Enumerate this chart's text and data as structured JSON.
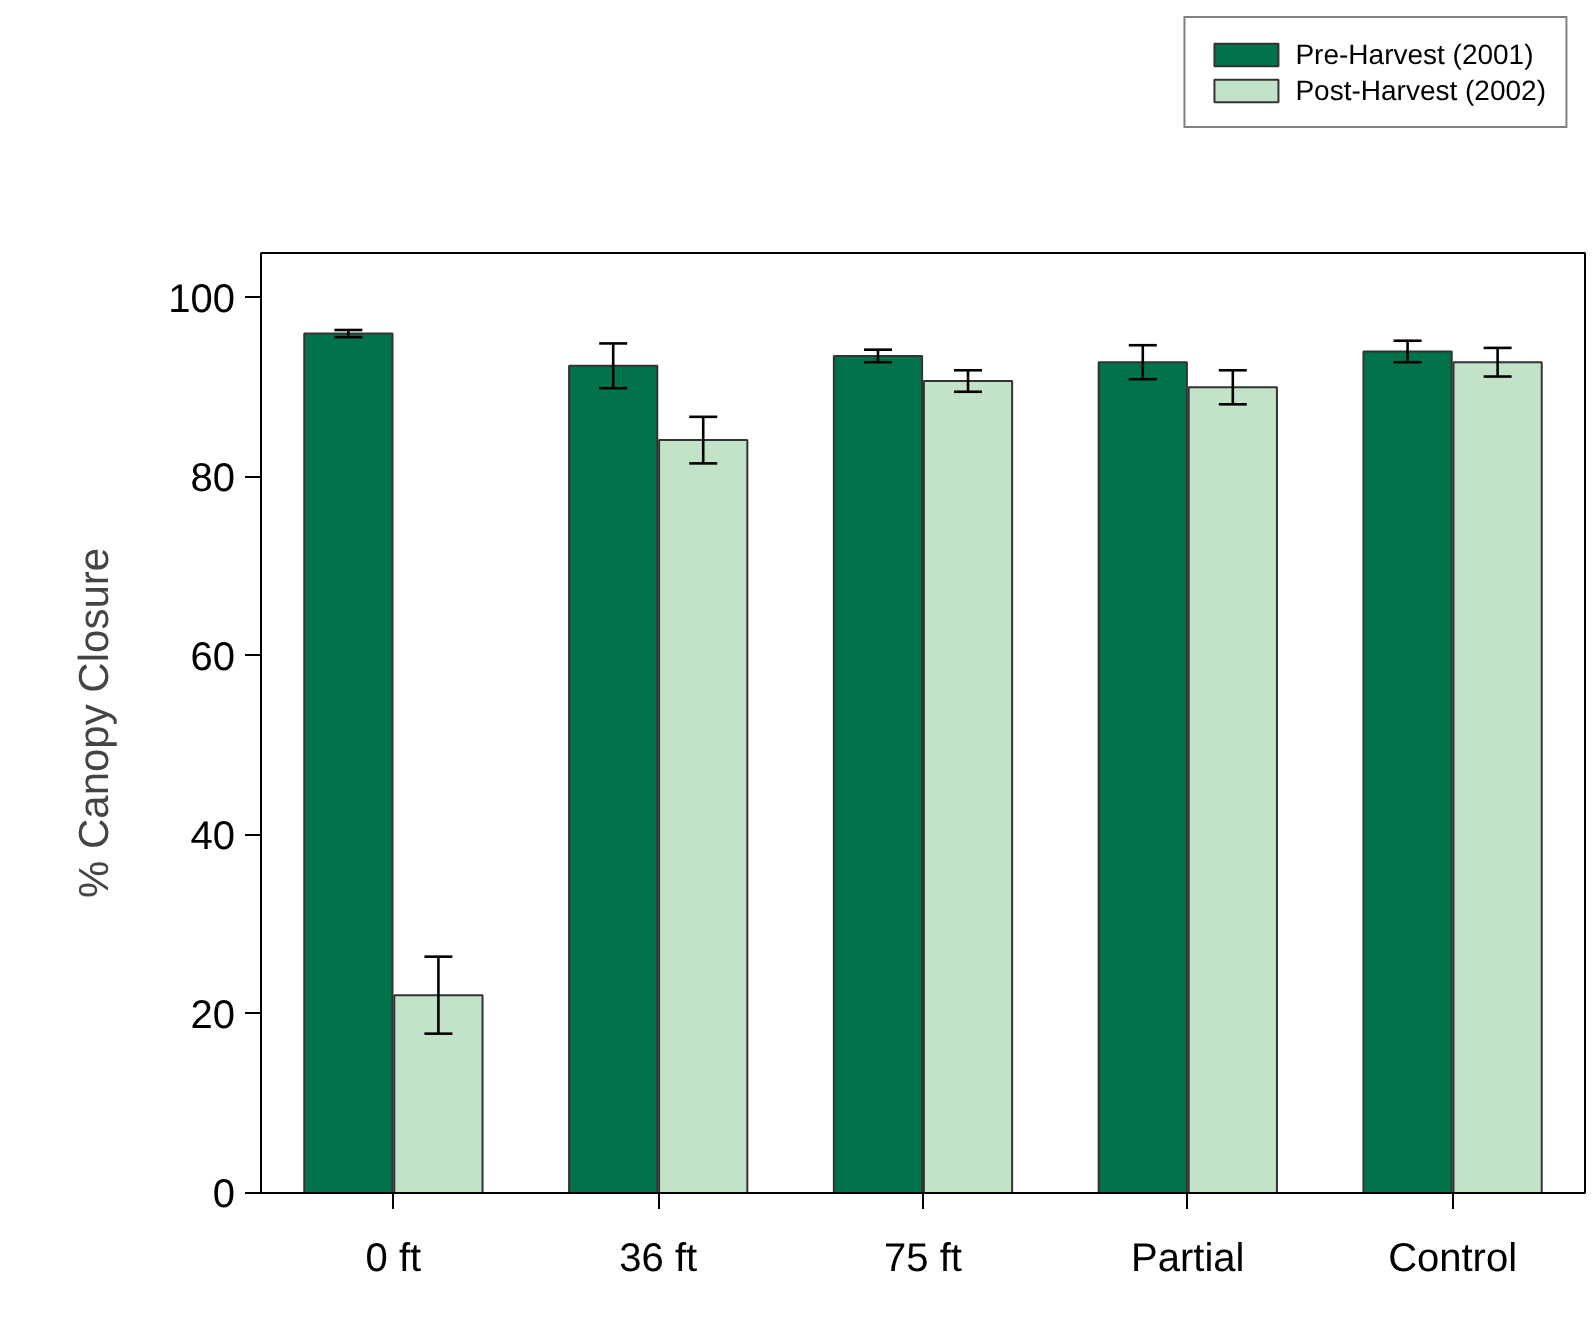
{
  "chart_data": {
    "type": "bar",
    "ylabel": "% Canopy Closure",
    "categories": [
      "0 ft",
      "36 ft",
      "75 ft",
      "Partial",
      "Control"
    ],
    "series": [
      {
        "name": "Pre-Harvest (2001)",
        "color": "#00734a",
        "values": [
          96,
          92.4,
          93.5,
          92.8,
          94.0
        ],
        "errors": [
          0.4,
          2.5,
          0.7,
          1.9,
          1.2
        ]
      },
      {
        "name": "Post-Harvest (2002)",
        "color": "#c2e3c8",
        "values": [
          22.1,
          84.1,
          90.7,
          90.0,
          92.8
        ],
        "errors": [
          4.3,
          2.6,
          1.2,
          1.9,
          1.6
        ]
      }
    ],
    "ylim": [
      0,
      105
    ],
    "yticks": [
      0,
      20,
      40,
      60,
      80,
      100
    ],
    "grid": false,
    "legend": "top right"
  }
}
